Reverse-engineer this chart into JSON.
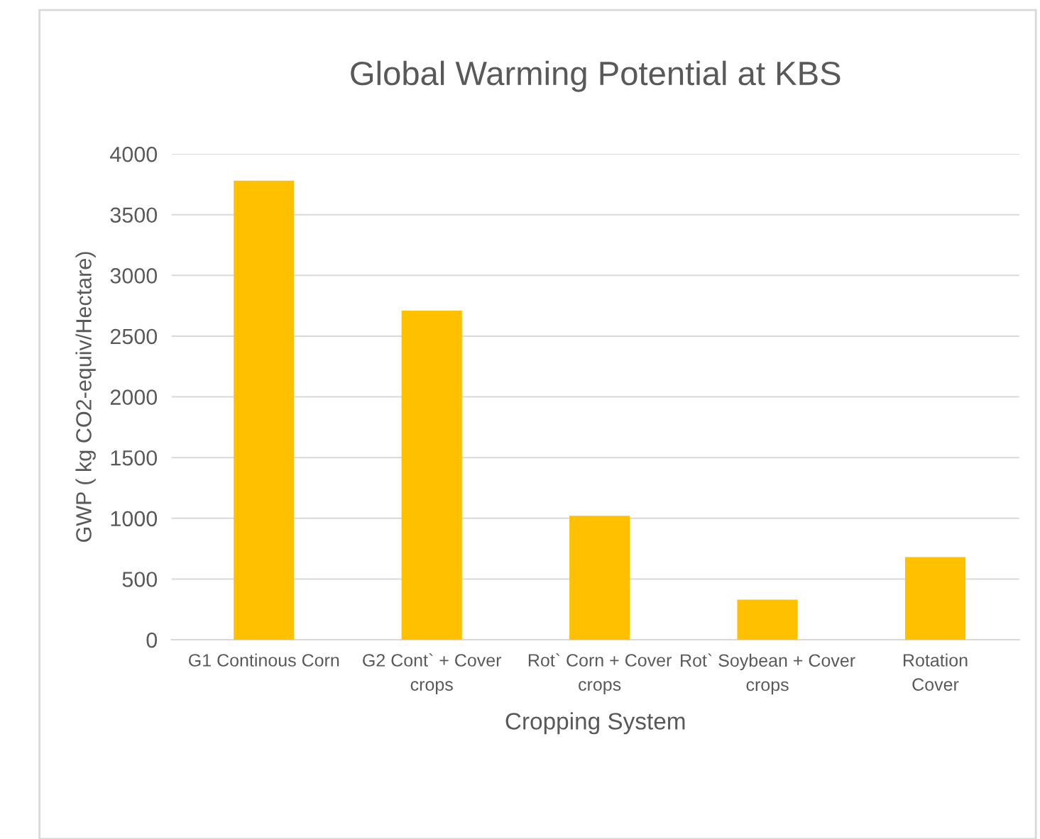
{
  "chart_data": {
    "type": "bar",
    "title": "Global Warming Potential at KBS",
    "xlabel": "Cropping System",
    "ylabel": "GWP ( kg CO2-equiv/Hectare)",
    "categories": [
      "G1 Continous Corn",
      "G2 Cont` + Cover\ncrops",
      "Rot` Corn + Cover\ncrops",
      "Rot` Soybean + Cover\ncrops",
      "Rotation\nCover"
    ],
    "values": [
      3780,
      2710,
      1020,
      330,
      680
    ],
    "color": "#ffc000",
    "ylim": [
      0,
      4000
    ],
    "yticks": [
      0,
      500,
      1000,
      1500,
      2000,
      2500,
      3000,
      3500,
      4000
    ],
    "grid": "y",
    "legend": false
  }
}
